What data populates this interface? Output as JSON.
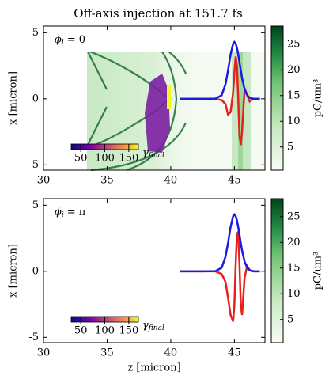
{
  "title": "Off-axis injection at 151.7 fs",
  "chart_data": [
    {
      "type": "line",
      "annotation": {
        "symbol": "ϕ",
        "sub": "i",
        "text": "= 0"
      },
      "ylabel": "x [micron]",
      "xlim": [
        30,
        47.4
      ],
      "ylim": [
        -5.4,
        5.5
      ],
      "xticks": [
        30,
        35,
        40,
        45
      ],
      "yticks": [
        -5,
        0,
        5
      ],
      "x": [
        40.7,
        41.5,
        42.5,
        43.5,
        44.0,
        44.3,
        44.5,
        44.7,
        44.9,
        45.0,
        45.1,
        45.2,
        45.3,
        45.4,
        45.5,
        45.6,
        45.8,
        46.0,
        46.2,
        46.5,
        47.0
      ],
      "series": [
        {
          "color": "#e8201c",
          "values": [
            0,
            0,
            0,
            0,
            -0.1,
            -0.4,
            -1.2,
            -1.0,
            0.5,
            2.0,
            3.2,
            2.5,
            0.0,
            -2.8,
            -3.5,
            -2.5,
            0.8,
            0.3,
            -0.2,
            0,
            0
          ]
        },
        {
          "color": "#1a1ae6",
          "values": [
            0,
            0,
            0,
            0.01,
            0.27,
            1.1,
            2.15,
            3.35,
            4.18,
            4.3,
            4.18,
            3.85,
            3.35,
            2.76,
            2.15,
            1.58,
            0.73,
            0.27,
            0.08,
            0,
            0
          ]
        }
      ],
      "colorbar": {
        "label": "pC/um³",
        "lim": [
          0.5,
          28.5
        ],
        "ticks": [
          5,
          10,
          15,
          20,
          25
        ]
      },
      "gamma_colorbar": {
        "label": "γ",
        "sub": "final",
        "lim": [
          30,
          170
        ],
        "ticks": [
          50,
          100,
          150
        ]
      }
    },
    {
      "type": "line",
      "annotation": {
        "symbol": "ϕ",
        "sub": "i",
        "text": "= π"
      },
      "xlabel": "z [micron]",
      "ylabel": "x [micron]",
      "xlim": [
        30,
        47.4
      ],
      "ylim": [
        -5.4,
        5.5
      ],
      "xticks": [
        30,
        35,
        40,
        45
      ],
      "yticks": [
        -5,
        0,
        5
      ],
      "x": [
        40.7,
        41.5,
        42.5,
        43.5,
        44.0,
        44.3,
        44.5,
        44.7,
        44.9,
        45.0,
        45.1,
        45.2,
        45.3,
        45.4,
        45.5,
        45.6,
        45.8,
        46.0,
        46.2,
        46.5,
        47.0
      ],
      "series": [
        {
          "color": "#e8201c",
          "values": [
            0,
            0,
            0,
            0,
            -0.2,
            -0.8,
            -2.0,
            -3.3,
            -3.8,
            -2.5,
            0.5,
            2.8,
            3.0,
            0.5,
            -2.5,
            -3.3,
            -0.5,
            0.4,
            0.1,
            0,
            0
          ]
        },
        {
          "color": "#1a1ae6",
          "values": [
            0,
            0,
            0,
            0.01,
            0.27,
            1.1,
            2.15,
            3.35,
            4.18,
            4.3,
            4.18,
            3.85,
            3.35,
            2.76,
            2.15,
            1.58,
            0.73,
            0.27,
            0.08,
            0,
            0
          ]
        }
      ],
      "colorbar": {
        "label": "pC/um³",
        "lim": [
          0.5,
          28.5
        ],
        "ticks": [
          5,
          10,
          15,
          20,
          25
        ]
      },
      "gamma_colorbar": {
        "label": "γ",
        "sub": "final",
        "lim": [
          30,
          170
        ],
        "ticks": [
          50,
          100,
          150
        ]
      }
    }
  ]
}
